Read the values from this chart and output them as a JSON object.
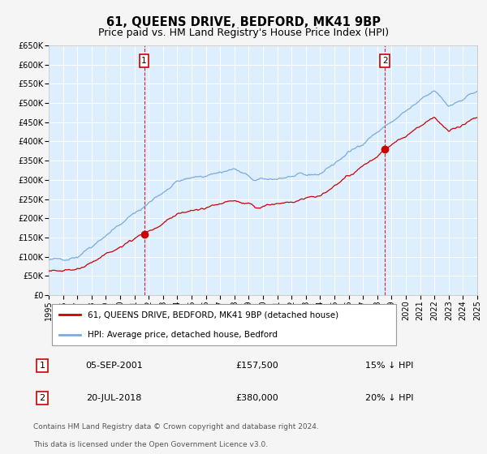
{
  "title": "61, QUEENS DRIVE, BEDFORD, MK41 9BP",
  "subtitle": "Price paid vs. HM Land Registry's House Price Index (HPI)",
  "xlim": [
    1995,
    2025
  ],
  "ylim": [
    0,
    650000
  ],
  "yticks": [
    0,
    50000,
    100000,
    150000,
    200000,
    250000,
    300000,
    350000,
    400000,
    450000,
    500000,
    550000,
    600000,
    650000
  ],
  "ytick_labels": [
    "£0",
    "£50K",
    "£100K",
    "£150K",
    "£200K",
    "£250K",
    "£300K",
    "£350K",
    "£400K",
    "£450K",
    "£500K",
    "£550K",
    "£600K",
    "£650K"
  ],
  "xticks": [
    1995,
    1996,
    1997,
    1998,
    1999,
    2000,
    2001,
    2002,
    2003,
    2004,
    2005,
    2006,
    2007,
    2008,
    2009,
    2010,
    2011,
    2012,
    2013,
    2014,
    2015,
    2016,
    2017,
    2018,
    2019,
    2020,
    2021,
    2022,
    2023,
    2024,
    2025
  ],
  "red_line_color": "#cc0000",
  "blue_line_color": "#7aabdc",
  "background_color": "#f5f5f5",
  "plot_bg_color": "#ddeeff",
  "grid_color": "#ffffff",
  "marker1_x": 2001.68,
  "marker1_y": 157500,
  "marker2_x": 2018.54,
  "marker2_y": 380000,
  "vline1_x": 2001.68,
  "vline2_x": 2018.54,
  "legend_label_red": "61, QUEENS DRIVE, BEDFORD, MK41 9BP (detached house)",
  "legend_label_blue": "HPI: Average price, detached house, Bedford",
  "table_row1": [
    "1",
    "05-SEP-2001",
    "£157,500",
    "15% ↓ HPI"
  ],
  "table_row2": [
    "2",
    "20-JUL-2018",
    "£380,000",
    "20% ↓ HPI"
  ],
  "footer_line1": "Contains HM Land Registry data © Crown copyright and database right 2024.",
  "footer_line2": "This data is licensed under the Open Government Licence v3.0.",
  "title_fontsize": 10.5,
  "subtitle_fontsize": 9,
  "tick_fontsize": 7,
  "label_fontsize": 8
}
